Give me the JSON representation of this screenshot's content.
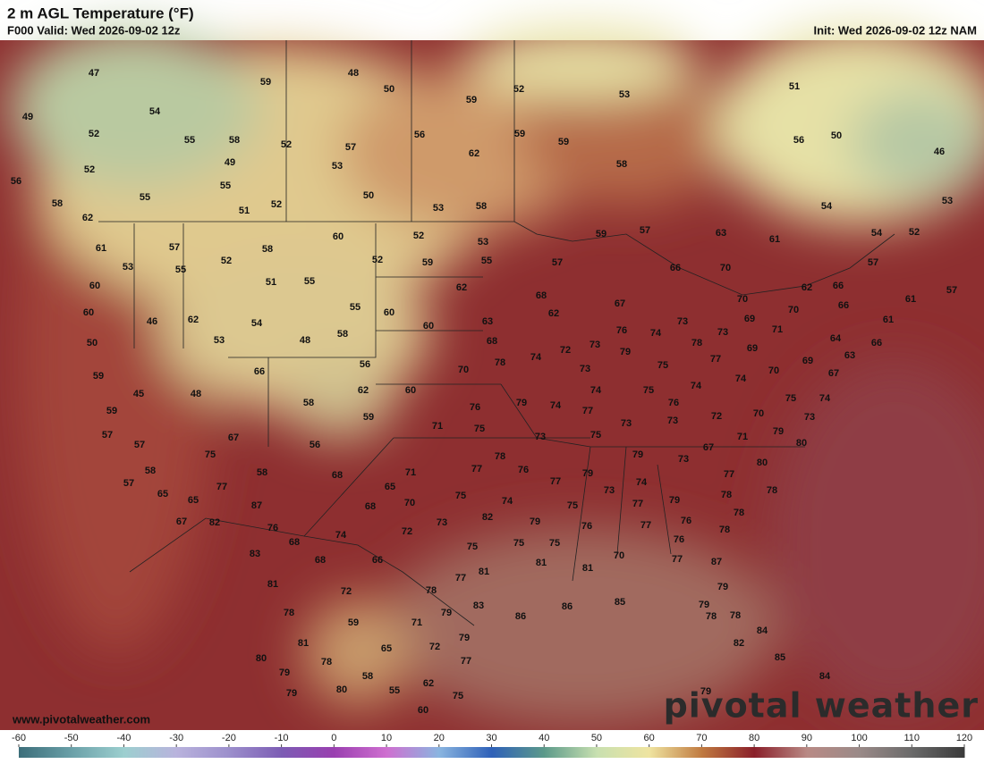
{
  "header": {
    "title": "2 m AGL Temperature (°F)",
    "valid": "F000 Valid: Wed 2026-09-02 12z",
    "init": "Init: Wed 2026-09-02 12z NAM"
  },
  "footer": {
    "website": "www.pivotalweather.com",
    "brand": "pivotal weather"
  },
  "stations": [
    47,
    49,
    52,
    52,
    56,
    59,
    48,
    50,
    54,
    55,
    58,
    52,
    57,
    53,
    49,
    55,
    51,
    52,
    50,
    53,
    58,
    59,
    52,
    59,
    56,
    62,
    59,
    58,
    53,
    50,
    56,
    51,
    46,
    53,
    54,
    52,
    54,
    57,
    61,
    57,
    55,
    58,
    62,
    61,
    57,
    55,
    53,
    52,
    58,
    60,
    52,
    53,
    52,
    59,
    55,
    51,
    55,
    60,
    60,
    46,
    62,
    54,
    53,
    50,
    48,
    58,
    55,
    60,
    60,
    62,
    63,
    68,
    57,
    59,
    57,
    63,
    61,
    66,
    70,
    62,
    66,
    66,
    61,
    64,
    66,
    63,
    59,
    45,
    48,
    66,
    56,
    62,
    58,
    59,
    60,
    59,
    57,
    57,
    58,
    57,
    65,
    65,
    67,
    75,
    77,
    67,
    82,
    56,
    58,
    68,
    65,
    87,
    76,
    68,
    74,
    68,
    70,
    71,
    75,
    73,
    82,
    72,
    66,
    68,
    83,
    81,
    72,
    78,
    59,
    65,
    71,
    72,
    78,
    79,
    79,
    77,
    58,
    55,
    62,
    75,
    60,
    80,
    79,
    79,
    78,
    80,
    81,
    83,
    86,
    85,
    86,
    77,
    81,
    75,
    75,
    75,
    81,
    81,
    70,
    77,
    87,
    79,
    79,
    78,
    78,
    82,
    84,
    85,
    84,
    79,
    68,
    67,
    62,
    76,
    74,
    73,
    78,
    73,
    69,
    70,
    70,
    71,
    69,
    77,
    75,
    73,
    72,
    74,
    70,
    78,
    79,
    73,
    75,
    74,
    74,
    70,
    69,
    67,
    74,
    75,
    73,
    76,
    79,
    74,
    74,
    77,
    76,
    73,
    72,
    70,
    73,
    71,
    75,
    73,
    75,
    71,
    79,
    80,
    77,
    78,
    76,
    77,
    79,
    79,
    73,
    67,
    77,
    80,
    73,
    74,
    77,
    79,
    78,
    78,
    75,
    79,
    74,
    76,
    77,
    76,
    78,
    76,
    78
  ],
  "colorbar": {
    "ticks": [
      -60,
      -50,
      -40,
      -30,
      -20,
      -10,
      0,
      10,
      20,
      30,
      40,
      50,
      60,
      70,
      80,
      90,
      100,
      110,
      120
    ],
    "colors": [
      "#3c6e7a",
      "#6aa0a8",
      "#9ccfcf",
      "#b9b3dd",
      "#9c8fcc",
      "#7c5cb4",
      "#9a3fb0",
      "#cf6fd0",
      "#8ab5e0",
      "#2e60b8",
      "#5c9a8a",
      "#c8e0b0",
      "#efe4a0",
      "#c07a40",
      "#8a1f2a",
      "#b98a85",
      "#9a8a88",
      "#6a6a6a",
      "#3a3a3a"
    ]
  }
}
